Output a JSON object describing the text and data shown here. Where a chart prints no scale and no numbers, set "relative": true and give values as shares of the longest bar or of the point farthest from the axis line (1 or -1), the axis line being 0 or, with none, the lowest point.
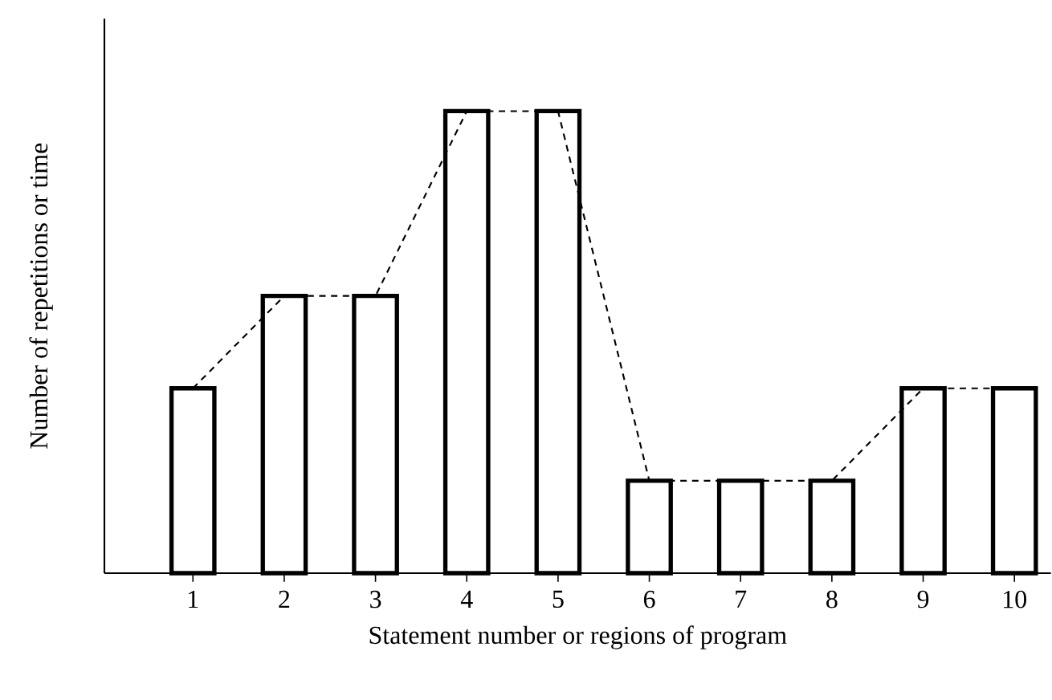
{
  "chart_data": {
    "type": "bar",
    "relative": true,
    "xlabel": "Statement number or regions of program",
    "ylabel": "Number of repetitions or time",
    "categories": [
      "1",
      "2",
      "3",
      "4",
      "5",
      "6",
      "7",
      "8",
      "9",
      "10"
    ],
    "series": [
      {
        "color": "#000000",
        "values": [
          0.4,
          0.6,
          0.6,
          1,
          1,
          0.2,
          0.2,
          0.2,
          0.4,
          0.4
        ]
      },
      {
        "type": "line",
        "color": "#000000",
        "line_style": "dashed",
        "values": [
          0.4,
          0.6,
          0.6,
          1,
          1,
          0.2,
          0.2,
          0.2,
          0.4,
          0.4
        ]
      }
    ]
  }
}
